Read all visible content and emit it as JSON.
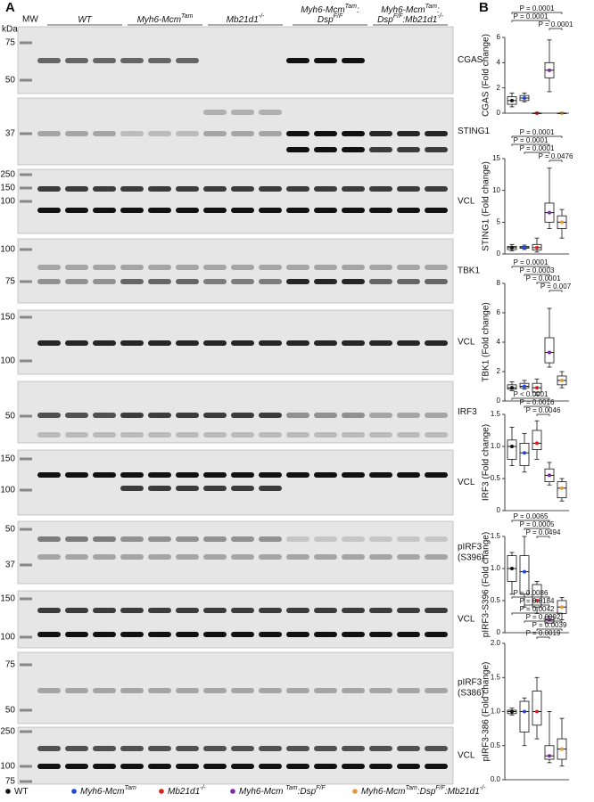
{
  "panel_a": {
    "label": "A",
    "mw": "MW",
    "kda": "kDa",
    "groups": [
      {
        "lines": [
          [
            "WT"
          ]
        ]
      },
      {
        "lines": [
          [
            "Myh6-Mcm",
            "Tam"
          ]
        ]
      },
      {
        "lines": [
          [
            "Mb21d1",
            "-/-"
          ]
        ]
      },
      {
        "lines": [
          [
            "Myh6-Mcm",
            "Tam",
            ":"
          ],
          [
            "Dsp",
            "F/F"
          ]
        ]
      },
      {
        "lines": [
          [
            "Myh6-Mcm",
            "Tam",
            ":"
          ],
          [
            "Dsp",
            "F/F",
            ":Mb21d1",
            "-/-"
          ]
        ]
      }
    ],
    "blots": [
      {
        "label": [
          "CGAS"
        ],
        "markers": [
          75,
          50
        ]
      },
      {
        "label": [
          "STING1"
        ],
        "markers": [
          37
        ]
      },
      {
        "label": [
          "VCL"
        ],
        "markers": [
          250,
          150,
          100
        ]
      },
      {
        "label": [
          "TBK1"
        ],
        "markers": [
          100,
          75
        ]
      },
      {
        "label": [
          "VCL"
        ],
        "markers": [
          150,
          100
        ]
      },
      {
        "label": [
          "IRF3"
        ],
        "markers": [
          50
        ]
      },
      {
        "label": [
          "VCL"
        ],
        "markers": [
          150,
          100
        ]
      },
      {
        "label": [
          "pIRF3",
          "(S396)"
        ],
        "markers": [
          50,
          37
        ]
      },
      {
        "label": [
          "VCL"
        ],
        "markers": [
          150,
          100
        ]
      },
      {
        "label": [
          "pIRF3",
          "(S386)"
        ],
        "markers": [
          75,
          50
        ]
      },
      {
        "label": [
          "VCL"
        ],
        "markers": [
          250,
          100,
          75
        ]
      }
    ]
  },
  "panel_b_label": "B",
  "legend": [
    {
      "parts": [
        "WT"
      ],
      "color": "#111111"
    },
    {
      "parts": [
        "Myh6-Mcm",
        "Tam"
      ],
      "color": "#2246d8"
    },
    {
      "parts": [
        "Mb21d1",
        "-/-"
      ],
      "color": "#d8201e"
    },
    {
      "parts": [
        "Myh6-Mcm ",
        "Tam",
        ":Dsp",
        "F/F"
      ],
      "color": "#7a2a9c"
    },
    {
      "parts": [
        "Myh6-Mcm",
        "Tam",
        ":Dsp",
        "F/F",
        ":Mb21d1",
        "-/-"
      ],
      "color": "#e09a3c"
    }
  ],
  "chart_data": [
    {
      "type": "box",
      "ylabel": "CGAS (Fold change)",
      "ylim": [
        0,
        6
      ],
      "yticks": [
        0,
        2,
        4,
        6
      ],
      "boxes": [
        [
          0.5,
          0.7,
          1.0,
          1.3,
          1.6
        ],
        [
          0.9,
          1.0,
          1.2,
          1.4,
          1.6
        ],
        [
          0,
          0,
          0,
          0,
          0.05
        ],
        [
          1.7,
          2.8,
          3.4,
          4.0,
          5.8
        ],
        [
          0,
          0,
          0,
          0,
          0.05
        ]
      ],
      "pvalues": [
        "P = 0.0001",
        "P = 0.0001",
        "P = 0.0001"
      ]
    },
    {
      "type": "box",
      "ylabel": "STING1 (Fold change)",
      "ylim": [
        0,
        15
      ],
      "yticks": [
        0,
        5,
        10,
        15
      ],
      "boxes": [
        [
          0.5,
          0.7,
          1.0,
          1.2,
          1.5
        ],
        [
          0.7,
          0.9,
          1.0,
          1.2,
          1.4
        ],
        [
          0.3,
          0.6,
          1.0,
          1.5,
          2.5
        ],
        [
          4,
          5,
          6.5,
          8,
          13.5
        ],
        [
          2.5,
          4,
          5,
          6,
          7
        ]
      ],
      "pvalues": [
        "P = 0.0001",
        "P = 0.0001",
        "P = 0.0001",
        "P = 0.0476"
      ]
    },
    {
      "type": "box",
      "ylabel": "TBK1 (Fold change)",
      "ylim": [
        0,
        8
      ],
      "yticks": [
        0,
        2,
        4,
        6,
        8
      ],
      "boxes": [
        [
          0.7,
          0.8,
          0.9,
          1.1,
          1.3
        ],
        [
          0.8,
          0.9,
          1.0,
          1.2,
          1.4
        ],
        [
          0.4,
          0.6,
          0.9,
          1.2,
          1.5
        ],
        [
          2.3,
          2.6,
          3.3,
          4.3,
          6.3
        ],
        [
          0.9,
          1.1,
          1.4,
          1.7,
          2.0
        ]
      ],
      "pvalues": [
        "P = 0.0001",
        "P = 0.0003",
        "P = 0.0001",
        "P = 0.007"
      ]
    },
    {
      "type": "box",
      "ylabel": "IRF3 (Fold change)",
      "ylim": [
        0,
        1.5
      ],
      "yticks": [
        0,
        0.5,
        {
          "value": 1,
          "label": "1.0"
        },
        1.5
      ],
      "boxes": [
        [
          0.7,
          0.8,
          1.0,
          1.1,
          1.3
        ],
        [
          0.6,
          0.7,
          0.9,
          1.05,
          1.2
        ],
        [
          0.8,
          0.95,
          1.05,
          1.25,
          1.4
        ],
        [
          0.4,
          0.45,
          0.55,
          0.65,
          0.75
        ],
        [
          0.15,
          0.2,
          0.35,
          0.45,
          0.5
        ]
      ],
      "pvalues": [
        "P < 0.0001",
        "P = 0.0016",
        "P = 0.0046"
      ]
    },
    {
      "type": "box",
      "ylabel": "pIRF3-S396 (Fold change)",
      "ylim": [
        0,
        1.5
      ],
      "yticks": [
        0,
        0.5,
        {
          "value": 1,
          "label": "1.0"
        },
        1.5
      ],
      "boxes": [
        [
          0.6,
          0.8,
          1.0,
          1.2,
          1.25
        ],
        [
          0.4,
          0.6,
          0.95,
          1.2,
          1.5
        ],
        [
          0.3,
          0.4,
          0.5,
          0.75,
          0.8
        ],
        [
          0.15,
          0.15,
          0.2,
          0.25,
          0.25
        ],
        [
          0.2,
          0.3,
          0.4,
          0.5,
          0.55
        ]
      ],
      "pvalues": [
        "P = 0.0065",
        "P = 0.0005",
        "P = 0.0494"
      ]
    },
    {
      "type": "box",
      "ylabel": "pIRF3-386 (Fold change)",
      "ylim": [
        0,
        2
      ],
      "yticks": [
        {
          "value": 0,
          "label": "0.0"
        },
        0.5,
        {
          "value": 1,
          "label": "1.0"
        },
        1.5,
        {
          "value": 2,
          "label": "2.0"
        }
      ],
      "boxes": [
        [
          0.95,
          0.97,
          1.0,
          1.02,
          1.05
        ],
        [
          0.5,
          0.7,
          1.0,
          1.15,
          1.2
        ],
        [
          0.6,
          0.8,
          1.0,
          1.3,
          1.5
        ],
        [
          0.25,
          0.3,
          0.35,
          0.5,
          1.0
        ],
        [
          0.2,
          0.3,
          0.45,
          0.6,
          0.9
        ]
      ],
      "pvalues": [
        "P = 0.0086",
        "P = 0.0184",
        "P = 0.0042",
        "P = 0.0092",
        "P = 0.0039",
        "P = 0.0019"
      ]
    }
  ]
}
